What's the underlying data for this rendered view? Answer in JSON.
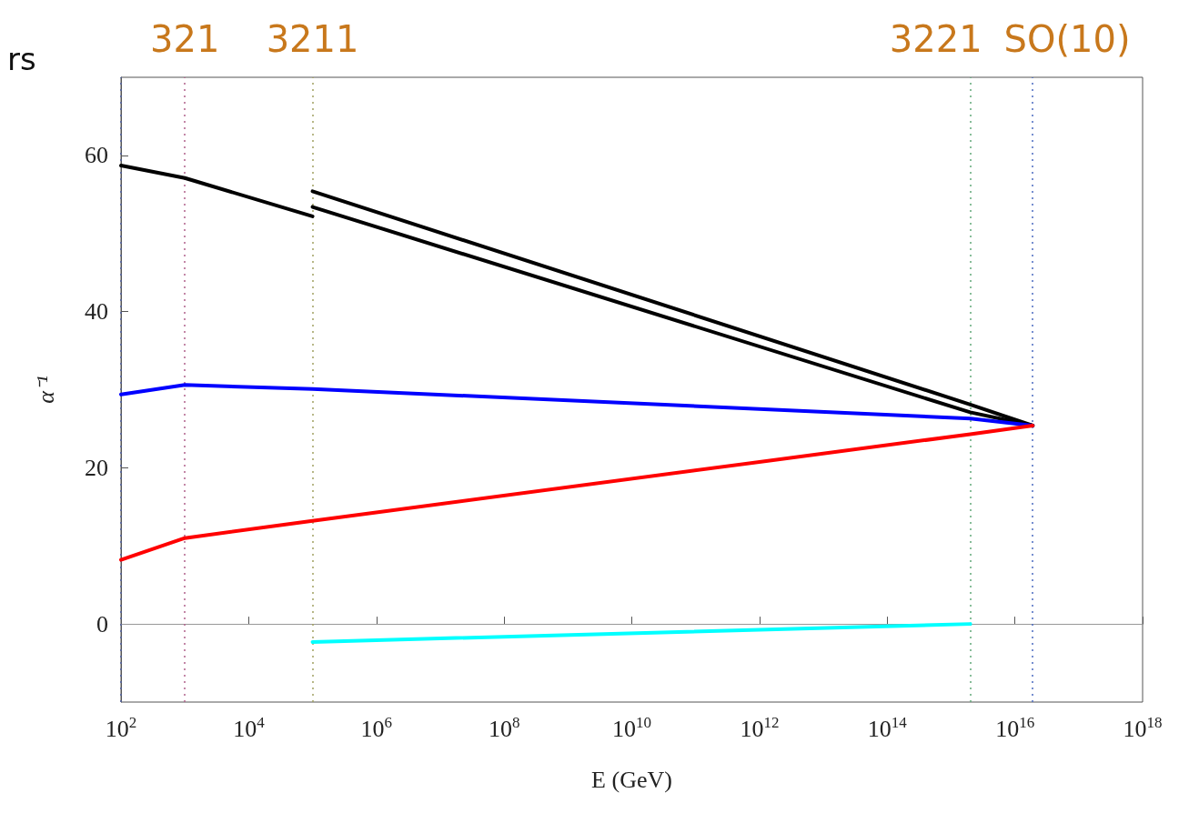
{
  "chart_data": {
    "type": "line",
    "xlabel": "E (GeV)",
    "ylabel": "α⁻¹",
    "log": "x",
    "xlim": [
      100,
      1e+18
    ],
    "xticks": [
      {
        "value": 100,
        "label": "10$^{2}$"
      },
      {
        "value": 10000,
        "label": "10$^{4}$"
      },
      {
        "value": 1000000,
        "label": "10$^{6}$"
      },
      {
        "value": 100000000,
        "label": "10$^{8}$"
      },
      {
        "value": 10000000000.0,
        "label": "10$^{10}$"
      },
      {
        "value": 1000000000000.0,
        "label": "10$^{12}$"
      },
      {
        "value": 100000000000000.0,
        "label": "10$^{14}$"
      },
      {
        "value": 1e+16,
        "label": "10$^{16}$"
      },
      {
        "value": 1e+18,
        "label": "10$^{18}$"
      }
    ],
    "ylim": [
      -10,
      70
    ],
    "yticks": [
      0,
      20,
      40,
      60
    ],
    "grid": false,
    "marker": "none",
    "line_style": "solid",
    "series": [
      {
        "color": "#000000",
        "x": [
          100,
          1000,
          100000
        ],
        "values": [
          58.7,
          57.1,
          52.2
        ]
      },
      {
        "color": "#000000",
        "x": [
          100000,
          2000000000000000.0,
          1.9e+16
        ],
        "values": [
          55.4,
          28.1,
          25.4
        ]
      },
      {
        "color": "#000000",
        "x": [
          100000,
          2000000000000000.0,
          1.9e+16
        ],
        "values": [
          53.4,
          27.1,
          25.4
        ]
      },
      {
        "color": "#0000ff",
        "x": [
          100,
          1000,
          100000,
          2000000000000000.0,
          1.9e+16
        ],
        "values": [
          29.4,
          30.6,
          30.1,
          26.3,
          25.4
        ]
      },
      {
        "color": "#ff0000",
        "x": [
          100,
          1000,
          100000,
          2000000000000000.0,
          1.9e+16
        ],
        "values": [
          8.2,
          11.0,
          13.2,
          24.3,
          25.4
        ]
      },
      {
        "color": "#00ffff",
        "x": [
          100000,
          2000000000000000.0
        ],
        "values": [
          -2.3,
          0.0
        ]
      }
    ],
    "ref_lines": [
      {
        "axis": "y",
        "value": 0,
        "label": null,
        "color": "#999999",
        "line_style": "solid"
      },
      {
        "axis": "x",
        "value": 100,
        "label": null,
        "color": "#5060a0",
        "line_style": "dotted"
      },
      {
        "axis": "x",
        "value": 1000,
        "label": null,
        "color": "#b0608a",
        "line_style": "dotted"
      },
      {
        "axis": "x",
        "value": 100000,
        "label": null,
        "color": "#a0a060",
        "line_style": "dotted"
      },
      {
        "axis": "x",
        "value": 2000000000000000.0,
        "label": null,
        "color": "#60a878",
        "line_style": "dotted"
      },
      {
        "axis": "x",
        "value": 1.9e+16,
        "label": null,
        "color": "#4a6ac0",
        "line_style": "dotted"
      }
    ],
    "annotations": [
      "rs",
      {
        "text": "321",
        "x": 1000,
        "y": 70
      },
      {
        "text": "3211",
        "x": 100000,
        "y": 70
      },
      {
        "text": "3221",
        "x": 2000000000000000.0,
        "y": 70
      },
      {
        "text": "SO(10)",
        "x": 1.9e+16,
        "y": 70
      }
    ]
  }
}
